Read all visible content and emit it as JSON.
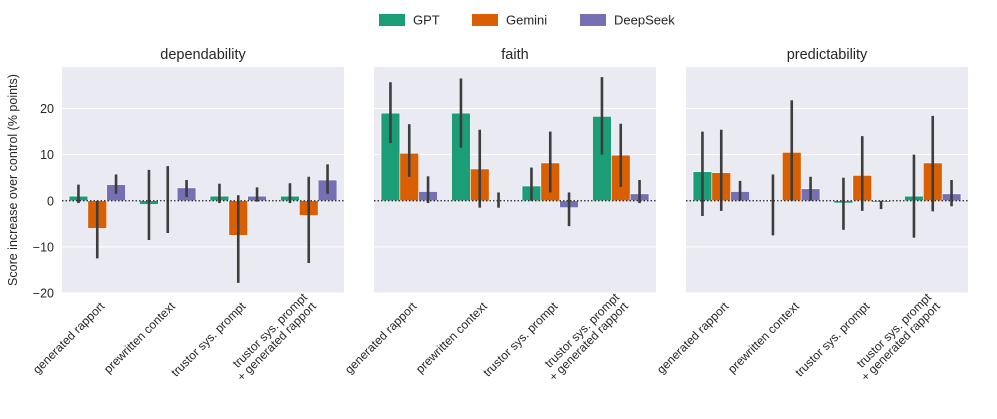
{
  "chart_data": {
    "type": "bar",
    "ylabel": "Score increase over control (% points)",
    "ylim": [
      -20,
      29
    ],
    "yticks": [
      -20,
      -10,
      0,
      10,
      20
    ],
    "categories": [
      [
        "generated rapport"
      ],
      [
        "prewritten context"
      ],
      [
        "trustor sys. prompt"
      ],
      [
        "trustor sys. prompt",
        "+ generated rapport"
      ]
    ],
    "legend": [
      {
        "name": "GPT",
        "color": "#1b9e77"
      },
      {
        "name": "Gemini",
        "color": "#d95f02"
      },
      {
        "name": "DeepSeek",
        "color": "#7570b3"
      }
    ],
    "panels": [
      {
        "title": "dependability",
        "series": [
          {
            "name": "GPT",
            "values": [
              1.0,
              -0.8,
              1.0,
              1.0
            ],
            "ci": [
              [
                -0.5,
                3.5
              ],
              [
                -8.5,
                6.7
              ],
              [
                -0.5,
                3.7
              ],
              [
                -0.5,
                3.8
              ]
            ]
          },
          {
            "name": "Gemini",
            "values": [
              -6.0,
              0.0,
              -7.5,
              -3.2
            ],
            "ci": [
              [
                -12.5,
                0.0
              ],
              [
                -7.0,
                7.5
              ],
              [
                -17.8,
                1.2
              ],
              [
                -13.5,
                5.2
              ]
            ]
          },
          {
            "name": "DeepSeek",
            "values": [
              3.5,
              2.8,
              1.0,
              4.5
            ],
            "ci": [
              [
                1.5,
                5.7
              ],
              [
                0.8,
                4.5
              ],
              [
                -0.2,
                2.9
              ],
              [
                1.5,
                7.9
              ]
            ]
          }
        ]
      },
      {
        "title": "faith",
        "series": [
          {
            "name": "GPT",
            "values": [
              19.0,
              19.0,
              3.2,
              18.3
            ],
            "ci": [
              [
                12.5,
                25.7
              ],
              [
                11.5,
                26.5
              ],
              [
                0.0,
                7.2
              ],
              [
                10.0,
                26.8
              ]
            ]
          },
          {
            "name": "Gemini",
            "values": [
              10.3,
              6.9,
              8.2,
              9.9
            ],
            "ci": [
              [
                5.2,
                16.6
              ],
              [
                -1.5,
                15.4
              ],
              [
                1.8,
                15.0
              ],
              [
                3.0,
                16.7
              ]
            ]
          },
          {
            "name": "DeepSeek",
            "values": [
              2.0,
              0.0,
              -1.5,
              1.5
            ],
            "ci": [
              [
                -0.5,
                5.3
              ],
              [
                -1.5,
                1.8
              ],
              [
                -5.5,
                1.8
              ],
              [
                -0.5,
                4.5
              ]
            ]
          }
        ]
      },
      {
        "title": "predictability",
        "series": [
          {
            "name": "GPT",
            "values": [
              6.3,
              0.0,
              -0.5,
              1.0
            ],
            "ci": [
              [
                -3.3,
                15.0
              ],
              [
                -7.5,
                5.7
              ],
              [
                -6.3,
                5.0
              ],
              [
                -8.0,
                10.0
              ]
            ]
          },
          {
            "name": "Gemini",
            "values": [
              6.1,
              10.5,
              5.5,
              8.2
            ],
            "ci": [
              [
                -2.2,
                15.4
              ],
              [
                0.0,
                21.8
              ],
              [
                -2.2,
                14.0
              ],
              [
                -2.3,
                18.4
              ]
            ]
          },
          {
            "name": "DeepSeek",
            "values": [
              2.0,
              2.6,
              -0.3,
              1.5
            ],
            "ci": [
              [
                0.0,
                4.3
              ],
              [
                0.0,
                5.2
              ],
              [
                -1.8,
                0.0
              ],
              [
                -1.2,
                4.5
              ]
            ]
          }
        ]
      }
    ]
  }
}
